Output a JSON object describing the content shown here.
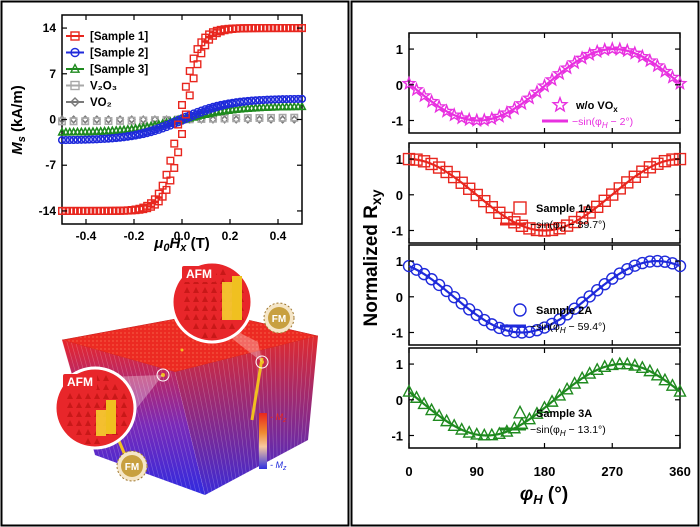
{
  "colors": {
    "red": "#e8261e",
    "blue": "#1f2adb",
    "green": "#1f8a1f",
    "magenta": "#e830e0",
    "gray": "#a8a8a8",
    "darkgray": "#7a7a7a",
    "slab_top": "#ee2a1e",
    "slab_side": "#3a2ad8",
    "fm": "#f0c020"
  },
  "chart_data": [
    {
      "id": "hysteresis",
      "type": "line",
      "xlabel_main": "μ",
      "xlabel_sub": "0",
      "xlabel_main2": "H",
      "xlabel_sub2": "x",
      "xlabel_unit": " (T)",
      "ylabel_main": "M",
      "ylabel_sub": "s",
      "ylabel_unit": " (kA/m)",
      "xlim": [
        -0.5,
        0.5
      ],
      "ylim": [
        -16,
        16
      ],
      "xticks": [
        -0.4,
        -0.2,
        0.0,
        0.2,
        0.4
      ],
      "xtick_labels": [
        "-0.4",
        "-0.2",
        "0.0",
        "0.2",
        "0.4"
      ],
      "yticks": [
        -14,
        -7,
        0,
        7,
        14
      ],
      "ytick_labels": [
        "-14",
        "-7",
        "0",
        "7",
        "14"
      ],
      "series": [
        {
          "name": "[Sample 1]",
          "marker": "square",
          "color": "red",
          "saturation": 14,
          "field_scale": 0.075
        },
        {
          "name": "[Sample 2]",
          "marker": "circle",
          "color": "blue",
          "saturation": 3.2,
          "field_scale": 0.2
        },
        {
          "name": "[Sample 3]",
          "marker": "triangle",
          "color": "green",
          "saturation": 2.0,
          "field_scale": 0.22
        },
        {
          "name": "V₂O₃",
          "marker": "square",
          "color": "gray",
          "saturation": 0.3,
          "field_scale": 0.3
        },
        {
          "name": "VO₂",
          "marker": "diamond",
          "color": "darkgray",
          "saturation": 0.0,
          "field_scale": 0.3
        }
      ]
    },
    {
      "id": "normalized-rxy",
      "type": "line",
      "ylabel_main": "Normalized R",
      "ylabel_sub": "xy",
      "xlabel_main": "φ",
      "xlabel_sub": "H",
      "xlabel_unit": " (°)",
      "xlim": [
        0,
        360
      ],
      "ylim": [
        -1.35,
        1.45
      ],
      "xticks": [
        0,
        90,
        180,
        270,
        360
      ],
      "xtick_labels": [
        "0",
        "90",
        "180",
        "270",
        "360"
      ],
      "yticks": [
        -1,
        0,
        1
      ],
      "ytick_labels": [
        "-1",
        "0",
        "1"
      ],
      "panels": [
        {
          "name": "w/o VO",
          "name_sub": "x",
          "fit_label": "−sin(φ",
          "fit_sub": "H",
          "fit_tail": " − 2°)",
          "phase_deg": 2,
          "marker": "star",
          "color": "magenta"
        },
        {
          "name": "Sample 1A",
          "name_sub": "",
          "fit_label": "−sin(φ",
          "fit_sub": "H",
          "fit_tail": " − 89.7°)",
          "phase_deg": 89.7,
          "marker": "square",
          "color": "red"
        },
        {
          "name": "Sample 2A",
          "name_sub": "",
          "fit_label": "−sin(φ",
          "fit_sub": "H",
          "fit_tail": " − 59.4°)",
          "phase_deg": 59.4,
          "marker": "circle",
          "color": "blue"
        },
        {
          "name": "Sample 3A",
          "name_sub": "",
          "fit_label": "−sin(φ",
          "fit_sub": "H",
          "fit_tail": " − 13.1°)",
          "phase_deg": 13.1,
          "marker": "triangle",
          "color": "green"
        }
      ]
    }
  ],
  "illustration": {
    "afm_label_1": "AFM",
    "afm_label_2": "AFM",
    "fm_label_1": "FM",
    "fm_label_2": "FM",
    "mz_top_label": "M",
    "mz_top_sub": "z",
    "mz_bottom_label": "M",
    "mz_bottom_sub": "z"
  }
}
